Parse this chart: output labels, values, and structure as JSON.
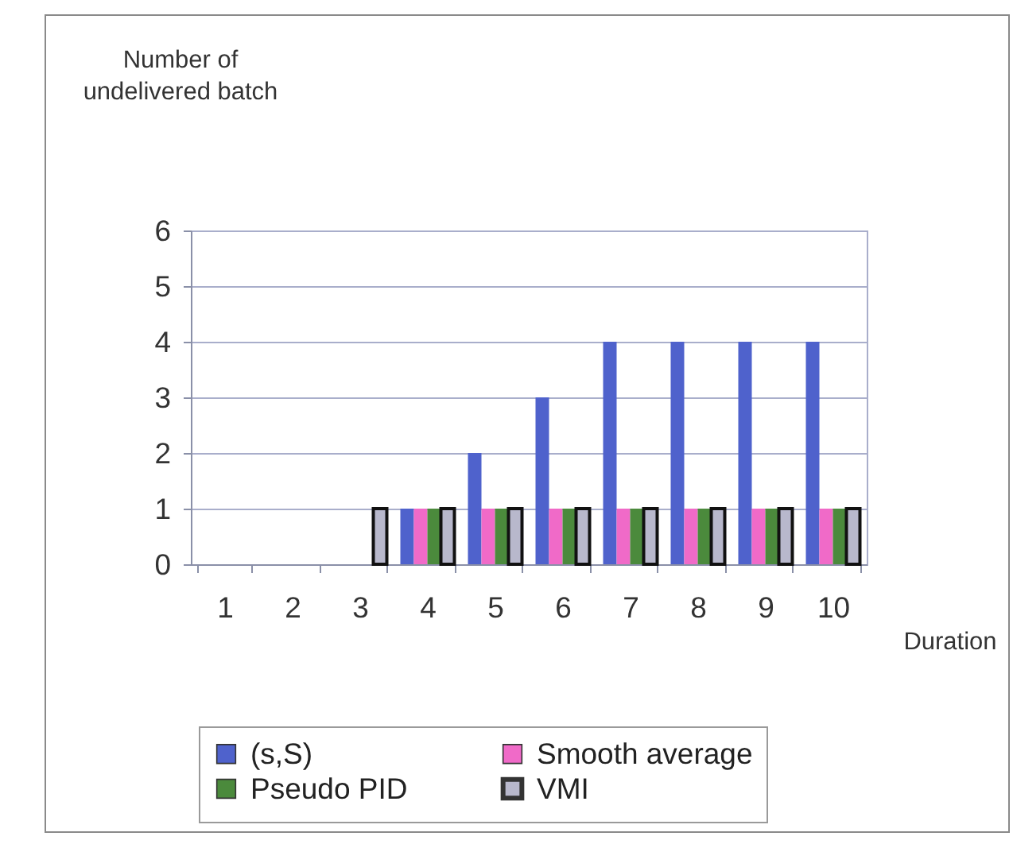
{
  "chart_data": {
    "type": "bar",
    "xlabel": "Duration",
    "ylabel": "Number of\nundelivered batch",
    "categories": [
      "1",
      "2",
      "3",
      "4",
      "5",
      "6",
      "7",
      "8",
      "9",
      "10"
    ],
    "series": [
      {
        "name": "(s,S)",
        "color": "#4f62cc",
        "values": [
          0,
          0,
          0,
          1,
          2,
          3,
          4,
          4,
          4,
          4
        ]
      },
      {
        "name": "Smooth average",
        "color": "#f06ac8",
        "values": [
          0,
          0,
          0,
          1,
          1,
          1,
          1,
          1,
          1,
          1
        ]
      },
      {
        "name": "Pseudo PID",
        "color": "#4b8a3c",
        "values": [
          0,
          0,
          0,
          1,
          1,
          1,
          1,
          1,
          1,
          1
        ]
      },
      {
        "name": "VMI",
        "color": "#b8b8cc",
        "values": [
          0,
          0,
          1,
          1,
          1,
          1,
          1,
          1,
          1,
          1
        ]
      }
    ],
    "ylim": [
      0,
      6
    ],
    "yticks": [
      0,
      1,
      2,
      3,
      4,
      5,
      6
    ],
    "grid": "y",
    "legend": "bottom"
  }
}
